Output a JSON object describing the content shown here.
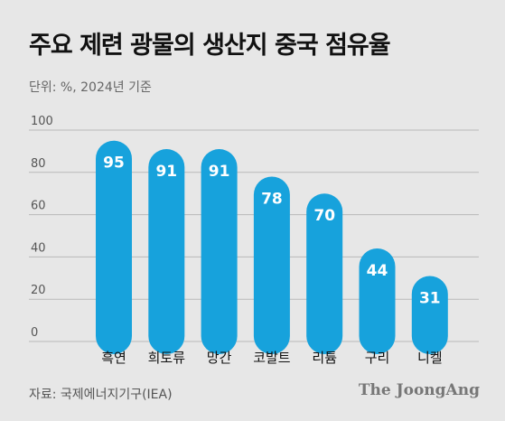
{
  "header": {
    "title": "주요 제련 광물의 생산지 중국 점유율",
    "unit": "단위: %, 2024년 기준"
  },
  "footer": {
    "source": "자료: 국제에너지기구(IEA)",
    "brand": "The JoongAng"
  },
  "colors": {
    "bar": "#17a2dc",
    "grid": "#b9b9b9",
    "label": "#ffffff"
  },
  "chart_data": {
    "type": "bar",
    "title": "주요 제련 광물의 생산지 중국 점유율",
    "categories": [
      "흑연",
      "희토류",
      "망간",
      "코발트",
      "리튬",
      "구리",
      "니켈"
    ],
    "values": [
      95,
      91,
      91,
      78,
      70,
      44,
      31
    ],
    "yticks": [
      0,
      20,
      40,
      60,
      80,
      100
    ],
    "ylim": [
      0,
      100
    ],
    "grid": true
  }
}
